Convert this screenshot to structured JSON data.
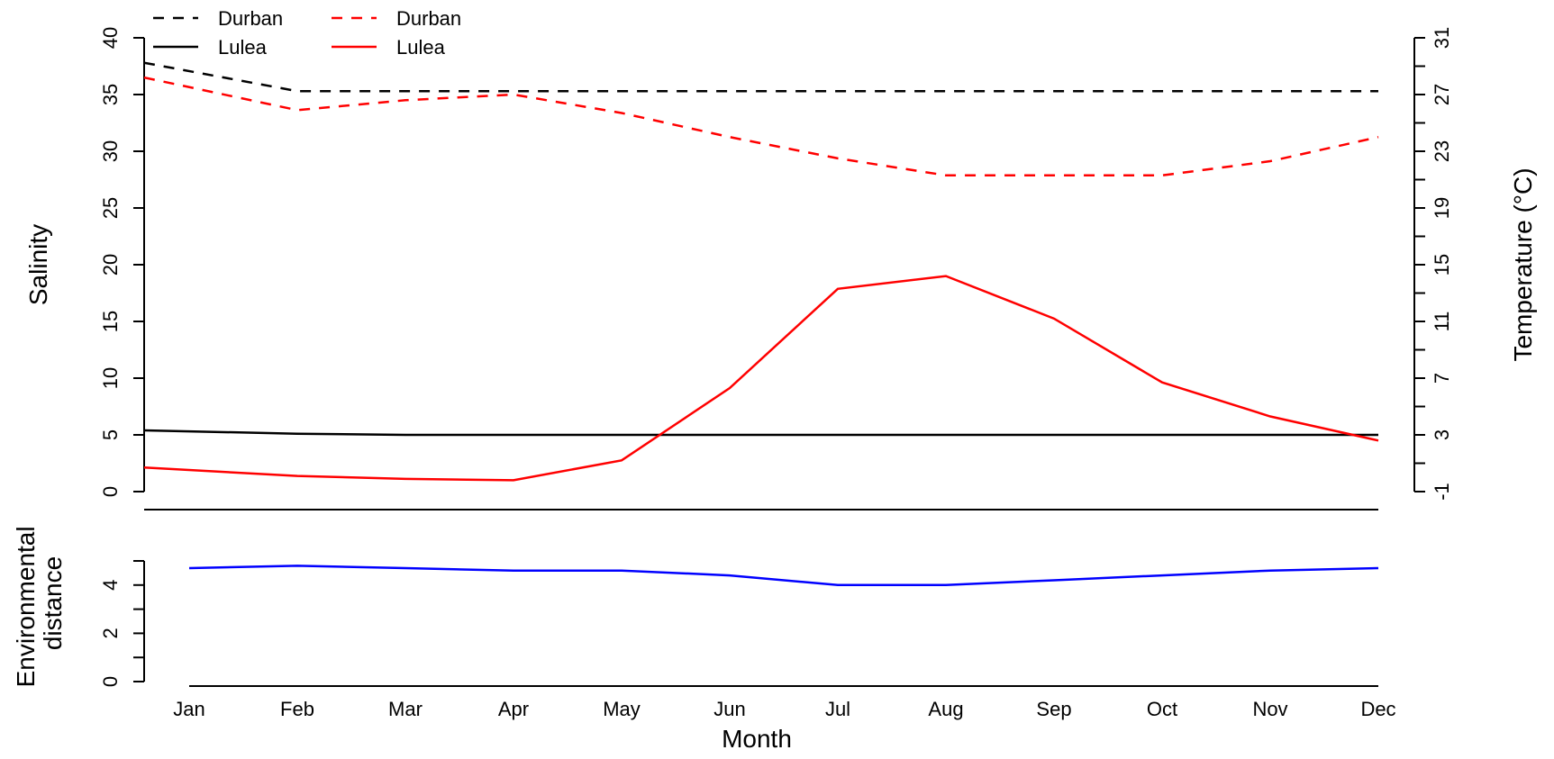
{
  "chart_data": [
    {
      "type": "line",
      "x": [
        "Jan",
        "Feb",
        "Mar",
        "Apr",
        "May",
        "Jun",
        "Jul",
        "Aug",
        "Sep",
        "Oct",
        "Nov",
        "Dec"
      ],
      "ylabel": "Salinity",
      "y2label": "Temperature (°C)",
      "ylim": [
        0,
        40
      ],
      "y2lim": [
        -1,
        31
      ],
      "yticks": [
        0,
        5,
        10,
        15,
        20,
        25,
        30,
        35,
        40
      ],
      "y2ticks": [
        -1,
        3,
        7,
        11,
        15,
        19,
        23,
        27,
        31
      ],
      "series": [
        {
          "name": "Durban",
          "quantity": "salinity",
          "axis": "left",
          "color": "#000000",
          "dash": true,
          "values": [
            37.8,
            35.3,
            35.3,
            35.3,
            35.3,
            35.3,
            35.3,
            35.3,
            35.3,
            35.3,
            35.3,
            35.3
          ]
        },
        {
          "name": "Lulea",
          "quantity": "salinity",
          "axis": "left",
          "color": "#000000",
          "dash": false,
          "values": [
            5.4,
            5.1,
            5.0,
            5.0,
            5.0,
            5.0,
            5.0,
            5.0,
            5.0,
            5.0,
            5.0,
            5.0
          ]
        },
        {
          "name": "Durban",
          "quantity": "temperature",
          "axis": "right",
          "color": "#ff0000",
          "dash": true,
          "values": [
            28.2,
            25.9,
            26.6,
            27.0,
            25.7,
            24.0,
            22.5,
            21.3,
            21.3,
            21.3,
            22.3,
            24.0
          ]
        },
        {
          "name": "Lulea",
          "quantity": "temperature",
          "axis": "right",
          "color": "#ff0000",
          "dash": false,
          "values": [
            0.7,
            0.1,
            -0.1,
            -0.2,
            1.2,
            6.3,
            13.3,
            14.2,
            11.2,
            6.7,
            4.3,
            2.6
          ]
        }
      ],
      "legend": {
        "position": "top-left",
        "entries": [
          {
            "label": "Durban",
            "color": "#000000",
            "dash": true
          },
          {
            "label": "Lulea",
            "color": "#000000",
            "dash": false
          },
          {
            "label": "Durban",
            "color": "#ff0000",
            "dash": true
          },
          {
            "label": "Lulea",
            "color": "#ff0000",
            "dash": false
          }
        ]
      }
    },
    {
      "type": "line",
      "x": [
        "Jan",
        "Feb",
        "Mar",
        "Apr",
        "May",
        "Jun",
        "Jul",
        "Aug",
        "Sep",
        "Oct",
        "Nov",
        "Dec"
      ],
      "xlabel": "Month",
      "ylabel": [
        "Environmental",
        "distance"
      ],
      "ylim": [
        0,
        5
      ],
      "yticks": [
        0,
        2,
        4
      ],
      "series": [
        {
          "name": "",
          "color": "#0000ff",
          "values": [
            4.7,
            4.8,
            4.7,
            4.6,
            4.6,
            4.4,
            4.0,
            4.0,
            4.2,
            4.4,
            4.6,
            4.7
          ]
        }
      ]
    }
  ]
}
